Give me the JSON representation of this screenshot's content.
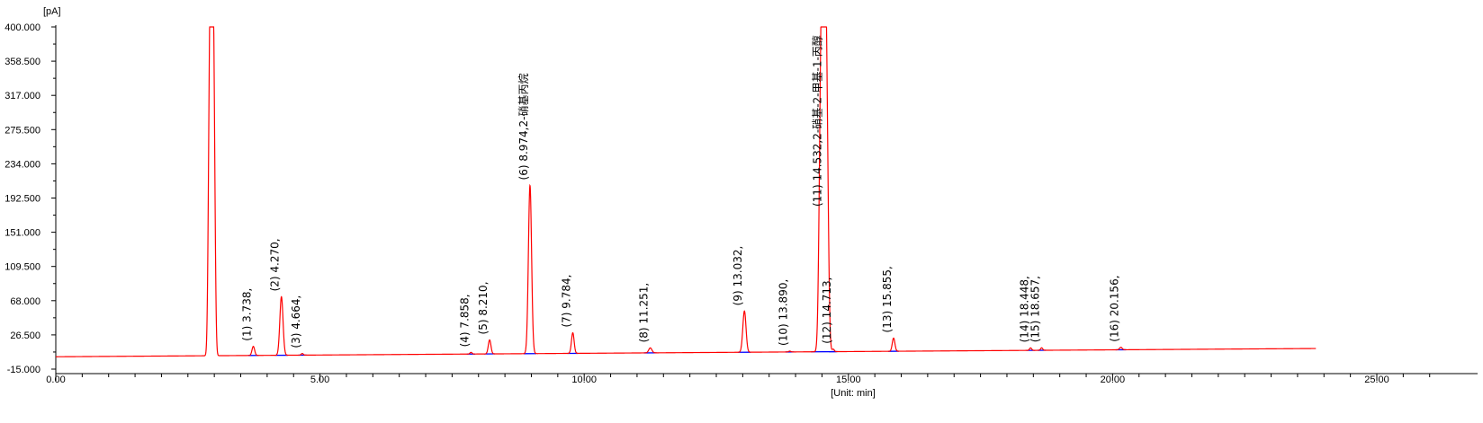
{
  "chart_data": {
    "type": "line",
    "y_unit": "[pA]",
    "x_unit": "[Unit: min]",
    "xlim": [
      0,
      25
    ],
    "ylim": [
      -15,
      400
    ],
    "x_ticks": [
      "0.00",
      "5.00",
      "10.00",
      "15.00",
      "20.00",
      "25.00"
    ],
    "x_tick_values": [
      0,
      5,
      10,
      15,
      20,
      25
    ],
    "y_ticks": [
      "400.000",
      "358.500",
      "317.000",
      "275.500",
      "234.000",
      "192.500",
      "151.000",
      "109.500",
      "68.000",
      "26.500",
      "-15.000"
    ],
    "y_tick_values": [
      400,
      358.5,
      317,
      275.5,
      234,
      192.5,
      151,
      109.5,
      68,
      26.5,
      -15
    ],
    "baseline": {
      "start_time": 0,
      "start_value": 0,
      "end_time": 23.85,
      "end_value": 10
    },
    "series": [
      {
        "color": "#ff0000",
        "peaks": [
          {
            "time": 2.95,
            "height": 400,
            "width": 0.045,
            "flat_top": true
          },
          {
            "time": 3.738,
            "height": 11,
            "width": 0.025
          },
          {
            "time": 4.27,
            "height": 71,
            "width": 0.03
          },
          {
            "time": 4.664,
            "height": 2,
            "width": 0.02
          },
          {
            "time": 7.858,
            "height": 2,
            "width": 0.02
          },
          {
            "time": 8.21,
            "height": 17,
            "width": 0.025
          },
          {
            "time": 8.974,
            "height": 204,
            "width": 0.03
          },
          {
            "time": 9.784,
            "height": 25,
            "width": 0.025
          },
          {
            "time": 11.251,
            "height": 6,
            "width": 0.03
          },
          {
            "time": 13.032,
            "height": 50,
            "width": 0.03
          },
          {
            "time": 13.89,
            "height": 1,
            "width": 0.02
          },
          {
            "time": 14.532,
            "height": 400,
            "width": 0.06,
            "flat_top": true
          },
          {
            "time": 14.713,
            "height": 3,
            "width": 0.02
          },
          {
            "time": 15.855,
            "height": 16,
            "width": 0.025
          },
          {
            "time": 18.448,
            "height": 3,
            "width": 0.02
          },
          {
            "time": 18.657,
            "height": 3,
            "width": 0.02
          },
          {
            "time": 20.156,
            "height": 3,
            "width": 0.025
          }
        ]
      }
    ],
    "peak_labels": [
      {
        "time": 3.738,
        "text": "(1) 3.738,"
      },
      {
        "time": 4.27,
        "text": "(2) 4.270,"
      },
      {
        "time": 4.664,
        "text": "(3) 4.664,"
      },
      {
        "time": 7.858,
        "text": "(4) 7.858,"
      },
      {
        "time": 8.21,
        "text": "(5) 8.210,"
      },
      {
        "time": 8.974,
        "text": "(6) 8.974,2-硝基丙烷"
      },
      {
        "time": 9.784,
        "text": "(7) 9.784,"
      },
      {
        "time": 11.251,
        "text": "(8) 11.251,"
      },
      {
        "time": 13.032,
        "text": "(9) 13.032,"
      },
      {
        "time": 13.89,
        "text": "(10) 13.890,"
      },
      {
        "time": 14.532,
        "text": "(11) 14.532,2-硝基-2-甲基-1-丙醇"
      },
      {
        "time": 14.713,
        "text": "(12) 14.713,"
      },
      {
        "time": 15.855,
        "text": "(13) 15.855,"
      },
      {
        "time": 18.448,
        "text": "(14) 18.448,"
      },
      {
        "time": 18.657,
        "text": "(15) 18.657,"
      },
      {
        "time": 20.156,
        "text": "(16) 20.156,"
      }
    ],
    "grid": false,
    "legend": "none",
    "colors": {
      "signal": "#ff0000",
      "integration_baseline": "#0000ff",
      "axis": "#000000"
    }
  }
}
